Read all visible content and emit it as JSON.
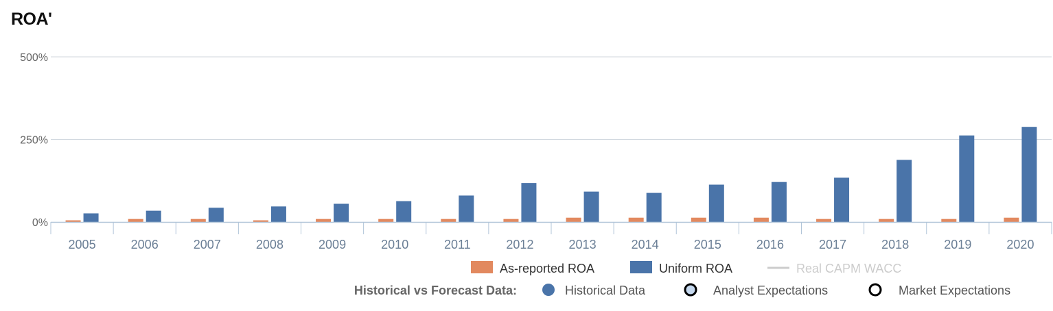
{
  "title": "ROA'",
  "colors": {
    "as_reported": "#e2895f",
    "uniform": "#4a74a9",
    "wacc": "#cccccc",
    "grid": "#d0d7de",
    "axis": "#b0c4d8"
  },
  "chart_data": {
    "type": "bar",
    "categories": [
      "2005",
      "2006",
      "2007",
      "2008",
      "2009",
      "2010",
      "2011",
      "2012",
      "2013",
      "2014",
      "2015",
      "2016",
      "2017",
      "2018",
      "2019",
      "2020"
    ],
    "series": [
      {
        "name": "As-reported ROA",
        "values": [
          5,
          9,
          9,
          5,
          9,
          9,
          9,
          9,
          13,
          13,
          13,
          13,
          9,
          9,
          9,
          13
        ]
      },
      {
        "name": "Uniform ROA",
        "values": [
          26,
          34,
          43,
          47,
          55,
          63,
          80,
          118,
          92,
          88,
          113,
          121,
          134,
          188,
          262,
          288
        ]
      }
    ],
    "ylim": [
      0,
      500
    ],
    "yticks": [
      0,
      250,
      500
    ],
    "ytick_labels": [
      "0%",
      "250%",
      "500%"
    ],
    "grid": true,
    "legend_position": "bottom-right"
  },
  "legend": {
    "items": [
      "As-reported ROA",
      "Uniform ROA",
      "Real CAPM WACC"
    ],
    "forecast_heading": "Historical vs Forecast Data:",
    "forecast_items": [
      "Historical Data",
      "Analyst Expectations",
      "Market Expectations"
    ]
  }
}
